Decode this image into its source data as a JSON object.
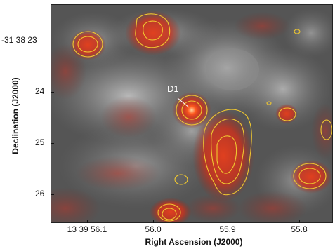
{
  "source_label": "D1",
  "axes": {
    "ylabel": "Declination (J2000)",
    "xlabel": "Right Ascension (J2000)",
    "yticks": [
      "-31 38 23",
      "24",
      "25",
      "26"
    ],
    "xticks": [
      "13 39 56.1",
      "56.0",
      "55.9",
      "55.8"
    ]
  },
  "colors": {
    "background_gray": "#6e6e6e",
    "emission_red": "#c8321e",
    "contour_yellow": "#f0c830"
  }
}
